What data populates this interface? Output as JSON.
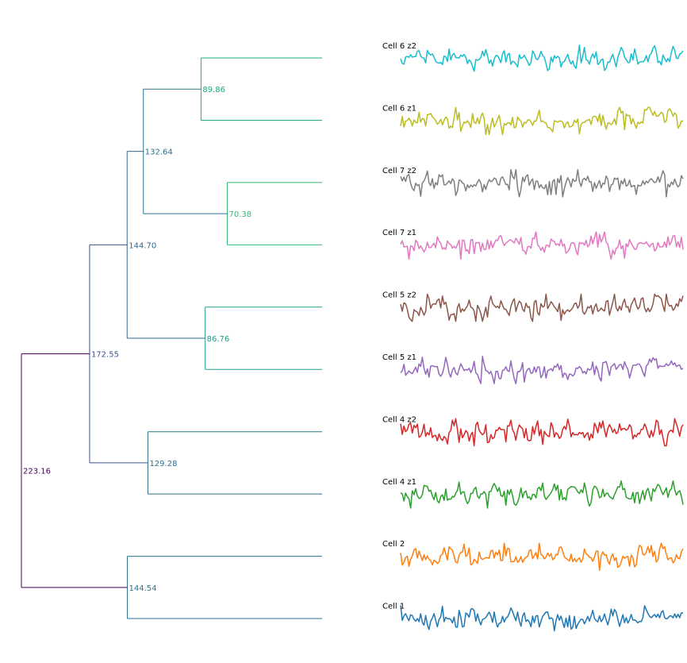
{
  "chart_data": {
    "type": "line",
    "title": "",
    "xlabel": "",
    "ylabel": "",
    "grid": false,
    "dendrogram": {
      "orientation": "left-to-right",
      "leaves": [
        "Cell 6 z2",
        "Cell 6 z1",
        "Cell 7 z2",
        "Cell 7 z1",
        "Cell 5 z2",
        "Cell 5 z1",
        "Cell 4 z2",
        "Cell 4 z1",
        "Cell 2",
        "Cell 1"
      ],
      "scale_max": 223.16,
      "tree": {
        "label": "223.16",
        "height": 223.16,
        "color": "#440154",
        "children": [
          {
            "label": "172.55",
            "height": 172.55,
            "color": "#3b528b",
            "children": [
              {
                "label": "144.70",
                "height": 144.7,
                "color": "#31688e",
                "children": [
                  {
                    "label": "132.64",
                    "height": 132.64,
                    "color": "#2c728e",
                    "children": [
                      {
                        "label": "89.86",
                        "height": 89.86,
                        "color": "#22a884",
                        "children": [
                          {
                            "leaf": 0
                          },
                          {
                            "leaf": 1
                          }
                        ]
                      },
                      {
                        "label": "70.38",
                        "height": 70.38,
                        "color": "#35b779",
                        "children": [
                          {
                            "leaf": 2
                          },
                          {
                            "leaf": 3
                          }
                        ]
                      }
                    ]
                  },
                  {
                    "label": "86.76",
                    "height": 86.76,
                    "color": "#1fa187",
                    "children": [
                      {
                        "leaf": 4
                      },
                      {
                        "leaf": 5
                      }
                    ]
                  }
                ]
              },
              {
                "label": "129.28",
                "height": 129.28,
                "color": "#2c728e",
                "children": [
                  {
                    "leaf": 6
                  },
                  {
                    "leaf": 7
                  }
                ]
              }
            ]
          },
          {
            "label": "144.54",
            "height": 144.54,
            "color": "#2c728e",
            "children": [
              {
                "leaf": 8
              },
              {
                "leaf": 9
              }
            ]
          }
        ]
      }
    },
    "series": [
      {
        "name": "Cell 6 z2",
        "color": "#17becf",
        "seed": 61,
        "spread": 1.0
      },
      {
        "name": "Cell 6 z1",
        "color": "#bcbd22",
        "seed": 53,
        "spread": 1.05
      },
      {
        "name": "Cell 7 z2",
        "color": "#7f7f7f",
        "seed": 47,
        "spread": 0.95
      },
      {
        "name": "Cell 7 z1",
        "color": "#e377c2",
        "seed": 41,
        "spread": 1.0
      },
      {
        "name": "Cell 5 z2",
        "color": "#8c564b",
        "seed": 37,
        "spread": 1.05
      },
      {
        "name": "Cell 5 z1",
        "color": "#9467bd",
        "seed": 31,
        "spread": 1.0
      },
      {
        "name": "Cell 4 z2",
        "color": "#d62728",
        "seed": 29,
        "spread": 1.15
      },
      {
        "name": "Cell 4 z1",
        "color": "#2ca02c",
        "seed": 23,
        "spread": 1.1
      },
      {
        "name": "Cell 2",
        "color": "#ff7f0e",
        "seed": 19,
        "spread": 1.1
      },
      {
        "name": "Cell 1",
        "color": "#1f77b4",
        "seed": 13,
        "spread": 1.05
      }
    ]
  }
}
